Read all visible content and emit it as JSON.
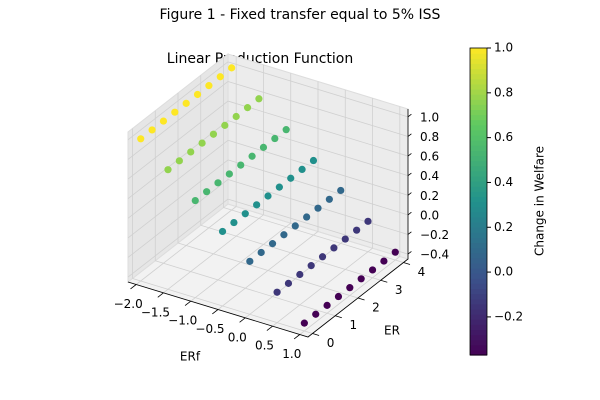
{
  "chart_data": {
    "type": "scatter3d",
    "title": "Figure 1 - Fixed transfer equal to 5% ISS",
    "subtitle": "Linear Production Function",
    "x_label": "ERf",
    "y_label": "ER",
    "colorbar_label": "Change in Welfare",
    "colormap": "viridis",
    "x": [
      -2,
      -2,
      -2,
      -2,
      -2,
      -2,
      -2,
      -2,
      -2,
      -1.5,
      -1.5,
      -1.5,
      -1.5,
      -1.5,
      -1.5,
      -1.5,
      -1.5,
      -1.5,
      -1,
      -1,
      -1,
      -1,
      -1,
      -1,
      -1,
      -1,
      -1,
      -0.5,
      -0.5,
      -0.5,
      -0.5,
      -0.5,
      -0.5,
      -0.5,
      -0.5,
      -0.5,
      0,
      0,
      0,
      0,
      0,
      0,
      0,
      0,
      0,
      0.5,
      0.5,
      0.5,
      0.5,
      0.5,
      0.5,
      0.5,
      0.5,
      0.5,
      1,
      1,
      1,
      1,
      1,
      1,
      1,
      1,
      1
    ],
    "y": [
      0,
      0.5,
      1,
      1.5,
      2,
      2.5,
      3,
      3.5,
      4,
      0,
      0.5,
      1,
      1.5,
      2,
      2.5,
      3,
      3.5,
      4,
      0,
      0.5,
      1,
      1.5,
      2,
      2.5,
      3,
      3.5,
      4,
      0,
      0.5,
      1,
      1.5,
      2,
      2.5,
      3,
      3.5,
      4,
      0,
      0.5,
      1,
      1.5,
      2,
      2.5,
      3,
      3.5,
      4,
      0,
      0.5,
      1,
      1.5,
      2,
      2.5,
      3,
      3.5,
      4,
      0,
      0.5,
      1,
      1.5,
      2,
      2.5,
      3,
      3.5,
      4
    ],
    "z": [
      1.0,
      1.0,
      1.0,
      1.0,
      1.0,
      1.0,
      1.0,
      1.0,
      1.0,
      0.77,
      0.77,
      0.77,
      0.77,
      0.77,
      0.77,
      0.77,
      0.77,
      0.77,
      0.54,
      0.54,
      0.54,
      0.54,
      0.54,
      0.54,
      0.54,
      0.54,
      0.54,
      0.31,
      0.31,
      0.31,
      0.31,
      0.31,
      0.31,
      0.31,
      0.31,
      0.31,
      0.09,
      0.09,
      0.09,
      0.09,
      0.09,
      0.09,
      0.09,
      0.09,
      0.09,
      -0.14,
      -0.14,
      -0.14,
      -0.14,
      -0.14,
      -0.14,
      -0.14,
      -0.14,
      -0.14,
      -0.37,
      -0.37,
      -0.37,
      -0.37,
      -0.37,
      -0.37,
      -0.37,
      -0.37,
      -0.37
    ],
    "xlim": [
      -2.15,
      1.15
    ],
    "ylim": [
      -0.2,
      4.2
    ],
    "zlim": [
      -0.45,
      1.08
    ],
    "clim": [
      -0.37,
      1.0
    ],
    "xticks": [
      {
        "value": -2.0,
        "label": "−2.0"
      },
      {
        "value": -1.5,
        "label": "−1.5"
      },
      {
        "value": -1.0,
        "label": "−1.0"
      },
      {
        "value": -0.5,
        "label": "−0.5"
      },
      {
        "value": 0,
        "label": "0.0"
      },
      0.5,
      {
        "value": 1,
        "label": "1.0"
      }
    ],
    "yticks": [
      0,
      1,
      2,
      3,
      4
    ],
    "zticks": [
      {
        "value": -0.4,
        "label": "−0.4"
      },
      {
        "value": -0.2,
        "label": "−0.2"
      },
      {
        "value": 0,
        "label": "0.0"
      },
      0.2,
      0.4,
      0.6,
      0.8,
      {
        "value": 1,
        "label": "1.0"
      }
    ],
    "cticks": [
      {
        "value": -0.2,
        "label": "−0.2"
      },
      {
        "value": 0,
        "label": "0.0"
      },
      0.2,
      0.4,
      0.6,
      0.8,
      {
        "value": 1,
        "label": "1.0"
      }
    ],
    "grid": true
  }
}
